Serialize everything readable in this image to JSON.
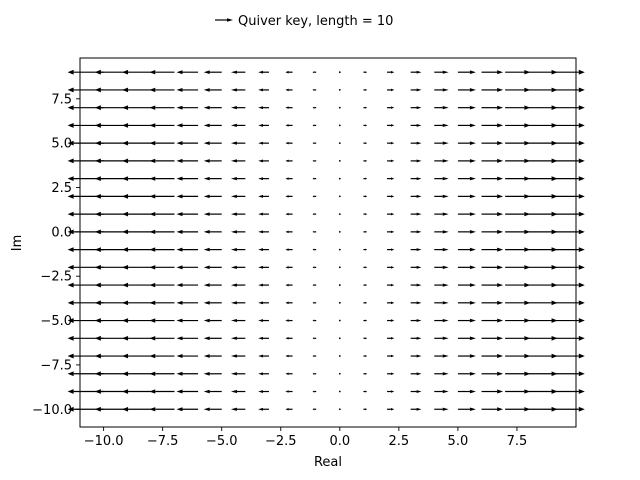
{
  "chart_data": {
    "type": "quiver",
    "title": "",
    "xlabel": "Real",
    "ylabel": "Im",
    "xlim": [
      -11,
      10
    ],
    "ylim": [
      -11,
      9.8
    ],
    "grid": false,
    "x_ticks": [
      -10.0,
      -7.5,
      -5.0,
      -2.5,
      0.0,
      2.5,
      5.0,
      7.5
    ],
    "x_tick_labels": [
      "−10.0",
      "−7.5",
      "−5.0",
      "−2.5",
      "0.0",
      "2.5",
      "5.0",
      "7.5"
    ],
    "y_ticks": [
      -10.0,
      -7.5,
      -5.0,
      -2.5,
      0.0,
      2.5,
      5.0,
      7.5
    ],
    "y_tick_labels": [
      "−10.0",
      "−7.5",
      "−5.0",
      "−2.5",
      "0.0",
      "2.5",
      "5.0",
      "7.5"
    ],
    "grid_x": [
      -10,
      -9,
      -8,
      -7,
      -6,
      -5,
      -4,
      -3,
      -2,
      -1,
      0,
      1,
      2,
      3,
      4,
      5,
      6,
      7,
      8,
      9
    ],
    "grid_y": [
      -10,
      -9,
      -8,
      -7,
      -6,
      -5,
      -4,
      -3,
      -2,
      -1,
      0,
      1,
      2,
      3,
      4,
      5,
      6,
      7,
      8,
      9
    ],
    "vector_field": {
      "u": "x",
      "v": "0"
    },
    "quiver_key": {
      "label": "Quiver key, length = 10",
      "length": 10,
      "placement": "top-center, above axes"
    },
    "arrow_color": "#000000"
  }
}
